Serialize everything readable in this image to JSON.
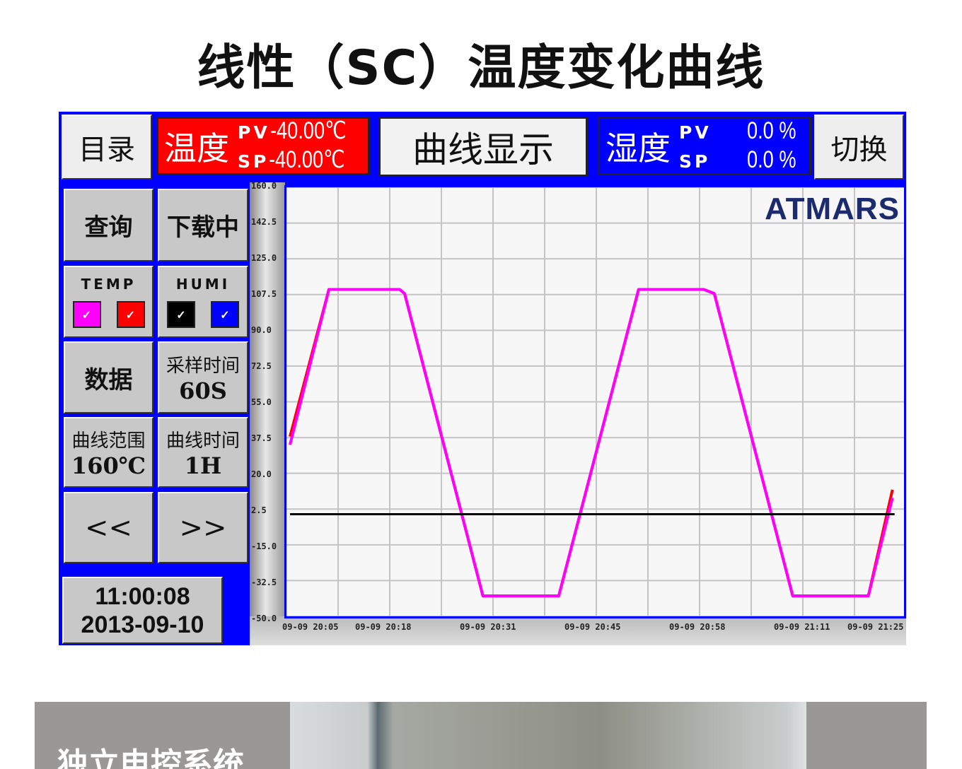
{
  "page_title": "线性（SC）温度变化曲线",
  "hmi": {
    "menu_button": "目录",
    "temp_panel": {
      "name": "温度",
      "pv_label": "PV",
      "pv_value": "-40.00℃",
      "sp_label": "SP",
      "sp_value": "-40.00℃",
      "color": "#ff0000"
    },
    "curve_display": "曲线显示",
    "humi_panel": {
      "name": "湿度",
      "pv_label": "PV",
      "pv_value": "0.0 %",
      "sp_label": "SP",
      "sp_value": "0.0 %",
      "color": "#0000ff"
    },
    "switch_button": "切换",
    "query_button": "查询",
    "download_button": "下载中",
    "temp_toggle": {
      "label": "TEMP",
      "checks": [
        {
          "color": "#ff00ff",
          "mark": "✓"
        },
        {
          "color": "#ff0000",
          "mark": "✓"
        }
      ]
    },
    "humi_toggle": {
      "label": "HUMI",
      "checks": [
        {
          "color": "#000000",
          "mark": "✓"
        },
        {
          "color": "#0000ff",
          "mark": "✓"
        }
      ]
    },
    "data_button": "数据",
    "sample_time": {
      "label": "采样时间",
      "value": "60S"
    },
    "curve_range": {
      "label": "曲线范围",
      "value": "160℃"
    },
    "curve_time": {
      "label": "曲线时间",
      "value": "1H"
    },
    "prev_button": "<<",
    "next_button": ">>",
    "clock": {
      "time": "11:00:08",
      "date": "2013-09-10"
    },
    "logo": "ATMARS"
  },
  "chart_data": {
    "type": "line",
    "ylim": [
      -50,
      160
    ],
    "yticks": [
      "160.0",
      "142.5",
      "125.0",
      "107.5",
      "90.0",
      "72.5",
      "55.0",
      "37.5",
      "20.0",
      "2.5",
      "-15.0",
      "-32.5",
      "-50.0"
    ],
    "xlim": [
      "20:05:36",
      "21:24:12"
    ],
    "xticks": [
      "09-09 20:05",
      "09-09 20:18",
      "09-09 20:31",
      "09-09 20:45",
      "09-09 20:58",
      "09-09 21:11",
      "09-09 21:25"
    ],
    "grid": true,
    "series": [
      {
        "color": "#ff0000",
        "x": [
          "20:06:03",
          "20:11:00",
          "20:20:00",
          "20:20:38",
          "20:30:36",
          "20:40:15",
          "20:50:25",
          "20:58:42",
          "21:00:03",
          "21:10:02",
          "21:19:40",
          "21:22:44"
        ],
        "y": [
          38,
          110,
          110,
          108,
          -40,
          -40,
          110,
          110,
          108,
          -40,
          -40,
          12
        ]
      },
      {
        "color": "#ff00ff",
        "x": [
          "20:06:03",
          "20:11:00",
          "20:20:00",
          "20:20:38",
          "20:30:36",
          "20:40:15",
          "20:50:25",
          "20:58:42",
          "21:00:03",
          "21:10:02",
          "21:19:40",
          "21:22:44"
        ],
        "y": [
          34,
          110,
          110,
          108,
          -40,
          -40,
          110,
          110,
          108,
          -40,
          -40,
          8
        ]
      },
      {
        "color": "#000000",
        "x": [
          "20:06:03",
          "21:23:00"
        ],
        "y": [
          0,
          0
        ]
      }
    ]
  },
  "bottom_banner": {
    "text": "独立电控系统"
  }
}
